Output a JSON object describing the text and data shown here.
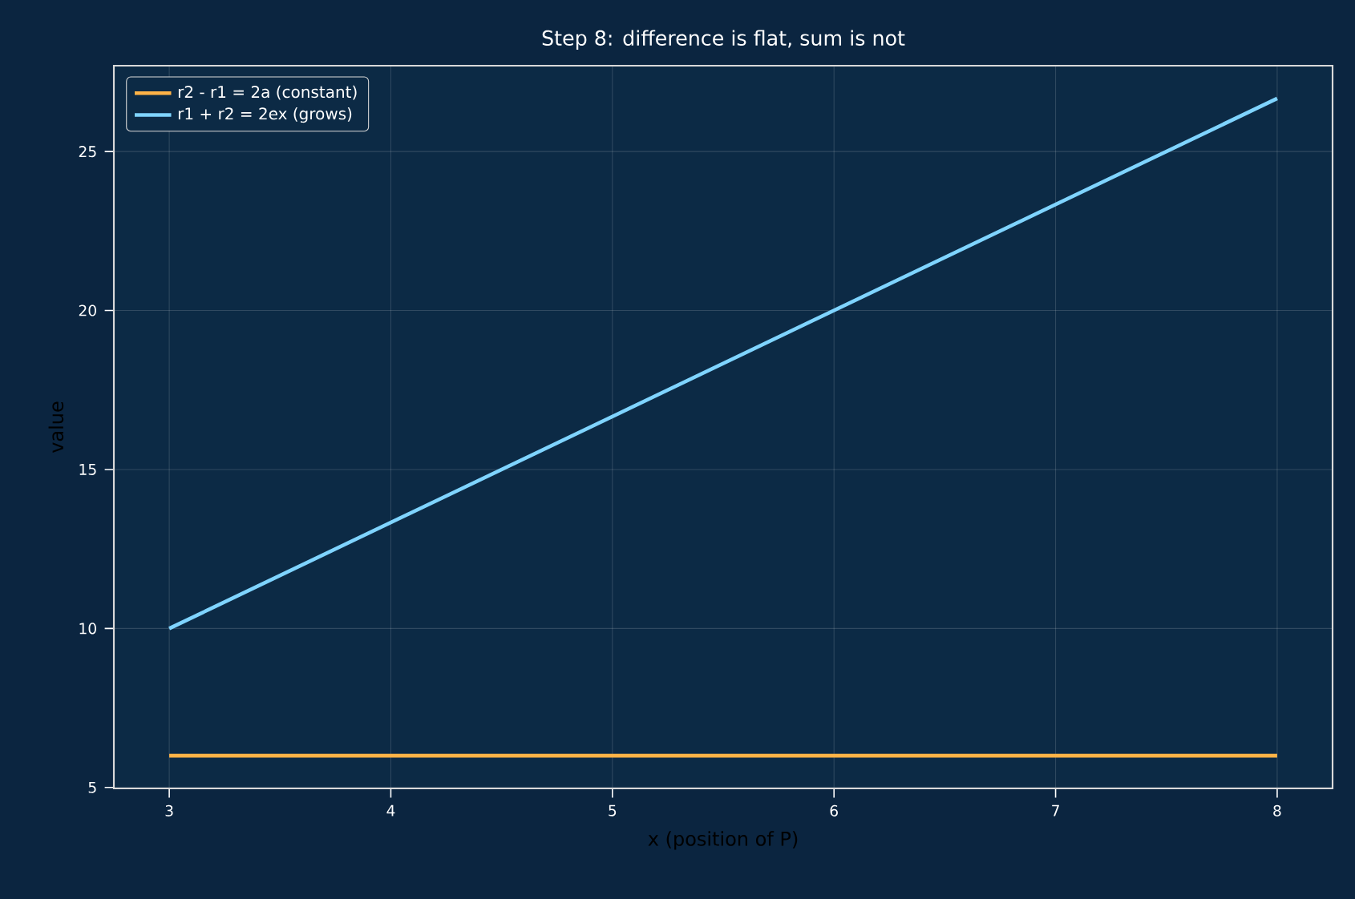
{
  "chart_data": {
    "type": "line",
    "title": "Step 8: difference is flat, sum is not",
    "xlabel": "x (position of P)",
    "ylabel": "value",
    "x": [
      3,
      8
    ],
    "series": [
      {
        "name": "r2 - r1 = 2a (constant)",
        "color": "#ffb347",
        "values": [
          6,
          6
        ]
      },
      {
        "name": "r1 + r2 = 2ex (grows)",
        "color": "#7fd4ff",
        "values": [
          10,
          26.67
        ]
      }
    ],
    "xlim": [
      2.75,
      8.25
    ],
    "ylim": [
      4.97,
      27.7
    ],
    "xticks": [
      3,
      4,
      5,
      6,
      7,
      8
    ],
    "yticks": [
      5,
      10,
      15,
      20,
      25
    ],
    "grid": true,
    "legend": "top left",
    "marker": "none",
    "line_style": "solid"
  }
}
